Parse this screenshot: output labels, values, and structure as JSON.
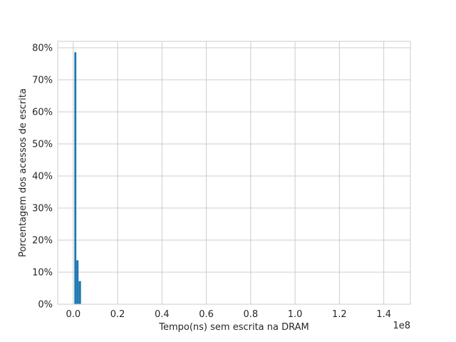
{
  "chart_data": {
    "type": "bar",
    "histogram": true,
    "xlabel": "Tempo(ns) sem escrita na DRAM",
    "ylabel": "Porcentagem dos acessos de escrita",
    "x_offset_label": "1e8",
    "xlim": [
      -7000000,
      152000000
    ],
    "ylim": [
      0,
      82
    ],
    "x_ticks": [
      {
        "value": 0,
        "label": "0.0"
      },
      {
        "value": 20000000,
        "label": "0.2"
      },
      {
        "value": 40000000,
        "label": "0.4"
      },
      {
        "value": 60000000,
        "label": "0.6"
      },
      {
        "value": 80000000,
        "label": "0.8"
      },
      {
        "value": 100000000,
        "label": "1.0"
      },
      {
        "value": 120000000,
        "label": "1.2"
      },
      {
        "value": 140000000,
        "label": "1.4"
      }
    ],
    "y_ticks": [
      {
        "value": 0,
        "label": "0%"
      },
      {
        "value": 10,
        "label": "10%"
      },
      {
        "value": 20,
        "label": "20%"
      },
      {
        "value": 30,
        "label": "30%"
      },
      {
        "value": 40,
        "label": "40%"
      },
      {
        "value": 50,
        "label": "50%"
      },
      {
        "value": 60,
        "label": "60%"
      },
      {
        "value": 70,
        "label": "70%"
      },
      {
        "value": 80,
        "label": "80%"
      }
    ],
    "bars": [
      {
        "x0": 500000,
        "x1": 1400000,
        "value": 78.6
      },
      {
        "x0": 1400000,
        "x1": 2400000,
        "value": 13.7
      },
      {
        "x0": 2400000,
        "x1": 3500000,
        "value": 7.2
      }
    ],
    "grid": true,
    "bar_color": "#1f77b4"
  }
}
